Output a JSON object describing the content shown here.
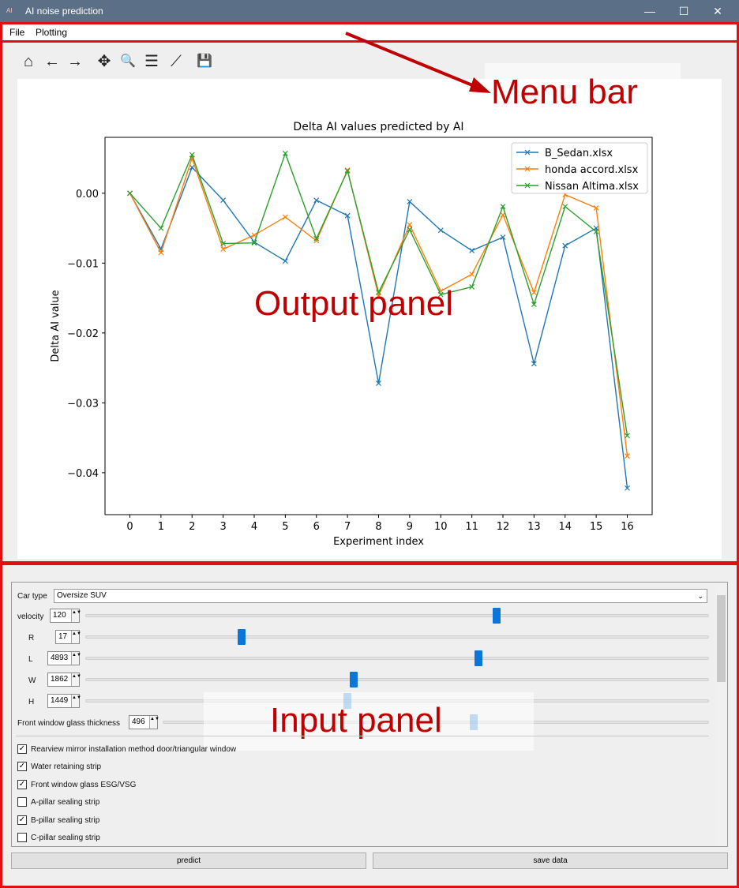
{
  "window": {
    "title": "AI noise prediction",
    "minimize": "—",
    "maximize": "☐",
    "close": "✕"
  },
  "menu": {
    "file": "File",
    "plotting": "Plotting"
  },
  "toolbar": {
    "home_icon": "⌂",
    "back_icon": "←",
    "forward_icon": "→",
    "pan_icon": "✥",
    "zoom_icon": "🔍",
    "subplots_icon": "☰",
    "edit_icon": "⟋",
    "save_icon": "💾"
  },
  "annotations": {
    "menu_bar": "Menu bar",
    "output_panel": "Output panel",
    "input_panel": "Input panel"
  },
  "chart_data": {
    "type": "line",
    "title": "Delta AI values predicted by AI",
    "xlabel": "Experiment index",
    "ylabel": "Delta AI value",
    "x": [
      0,
      1,
      2,
      3,
      4,
      5,
      6,
      7,
      8,
      9,
      10,
      11,
      12,
      13,
      14,
      15,
      16
    ],
    "ylim": [
      -0.046,
      0.008
    ],
    "yticks": [
      0.0,
      -0.01,
      -0.02,
      -0.03,
      -0.04
    ],
    "ytick_labels": [
      "0.00",
      "−0.01",
      "−0.02",
      "−0.03",
      "−0.04"
    ],
    "xtick_labels": [
      "0",
      "1",
      "2",
      "3",
      "4",
      "5",
      "6",
      "7",
      "8",
      "9",
      "10",
      "11",
      "12",
      "13",
      "14",
      "15",
      "16"
    ],
    "legend_position": "top-right",
    "grid": false,
    "series": [
      {
        "name": "B_Sedan.xlsx",
        "color": "#1f77b4",
        "values": [
          0.0,
          -0.008,
          0.0037,
          -0.001,
          -0.007,
          -0.0097,
          -0.001,
          -0.0032,
          -0.0272,
          -0.0012,
          -0.0053,
          -0.0082,
          -0.0063,
          -0.0244,
          -0.0075,
          -0.005,
          -0.0422
        ]
      },
      {
        "name": "honda accord.xlsx",
        "color": "#ff7f0e",
        "values": [
          0.0,
          -0.0085,
          0.005,
          -0.008,
          -0.006,
          -0.0034,
          -0.0068,
          0.0033,
          -0.0147,
          -0.0045,
          -0.014,
          -0.0116,
          -0.0031,
          -0.0142,
          -0.0002,
          -0.0021,
          -0.0376
        ]
      },
      {
        "name": "Nissan Altima.xlsx",
        "color": "#2ca02c",
        "values": [
          0.0,
          -0.005,
          0.0055,
          -0.0072,
          -0.0071,
          0.0057,
          -0.0065,
          0.0032,
          -0.0142,
          -0.0052,
          -0.0145,
          -0.0134,
          -0.0019,
          -0.0159,
          -0.0019,
          -0.0055,
          -0.0347
        ]
      }
    ]
  },
  "inputs": {
    "car_type": {
      "label": "Car type",
      "value": "Oversize SUV",
      "arrow": "⌄"
    },
    "velocity": {
      "label": "velocity",
      "value": "120",
      "slider_fraction": 0.66
    },
    "R": {
      "label": "R",
      "value": "17",
      "slider_fraction": 0.25
    },
    "L": {
      "label": "L",
      "value": "4893",
      "slider_fraction": 0.63
    },
    "W": {
      "label": "W",
      "value": "1862",
      "slider_fraction": 0.43
    },
    "H": {
      "label": "H",
      "value": "1449",
      "slider_fraction": 0.42
    },
    "front_glass": {
      "label": "Front window glass thickness",
      "value": "496",
      "slider_fraction": 0.57
    },
    "spin_arrows": "▲▼",
    "checkboxes": [
      {
        "label": "Rearview mirror installation method door/triangular window",
        "checked": "✓"
      },
      {
        "label": "Water retaining strip",
        "checked": "✓"
      },
      {
        "label": "Front window glass ESG/VSG",
        "checked": "✓"
      },
      {
        "label": "A-pillar sealing strip",
        "checked": ""
      },
      {
        "label": "B-pillar sealing strip",
        "checked": "✓"
      },
      {
        "label": "C-pillar sealing strip",
        "checked": ""
      }
    ]
  },
  "buttons": {
    "predict": "predict",
    "save_data": "save data"
  }
}
